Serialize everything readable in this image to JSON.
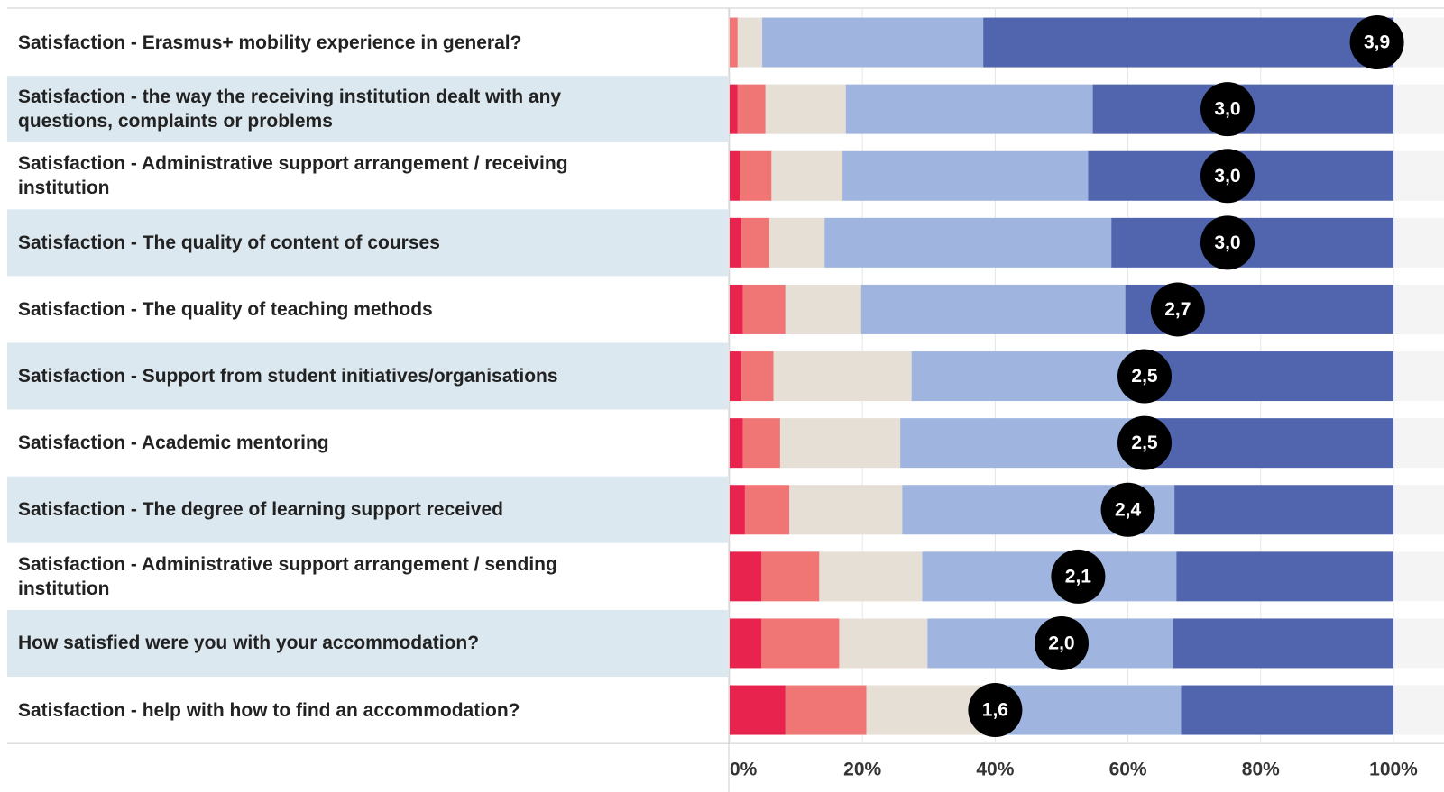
{
  "chart_data": {
    "type": "stacked_bar_horizontal",
    "categories": [
      "Satisfaction -  Erasmus+ mobility experience in general?",
      "Satisfaction - the way the receiving institution dealt with any questions, complaints or problems",
      "Satisfaction - Administrative support arrangement / receiving institution",
      "Satisfaction - The quality of content of courses",
      "Satisfaction - The quality of teaching methods",
      "Satisfaction - Support from student initiatives/organisations",
      "Satisfaction - Academic mentoring",
      "Satisfaction - The degree of learning support received",
      "Satisfaction - Administrative support arrangement / sending institution",
      "How satisfied were you with your accommodation?",
      "Satisfaction - help with how to find an accommodation?"
    ],
    "series": [
      {
        "color": "#e8234e",
        "values": [
          0,
          1.2,
          1.5,
          1.8,
          2.0,
          1.8,
          2.0,
          2.3,
          4.8,
          4.8,
          8.4
        ]
      },
      {
        "color": "#f07575",
        "values": [
          1.2,
          4.2,
          4.8,
          4.2,
          6.4,
          4.8,
          5.6,
          6.7,
          8.7,
          11.7,
          12.2
        ]
      },
      {
        "color": "#e6dfd6",
        "values": [
          3.7,
          12.1,
          10.7,
          8.3,
          11.4,
          20.8,
          18.1,
          17.0,
          15.5,
          13.3,
          17.5
        ]
      },
      {
        "color": "#9fb5e0",
        "values": [
          33.3,
          37.2,
          37.0,
          43.2,
          39.8,
          35.6,
          37.0,
          41.0,
          38.3,
          37.0,
          29.9
        ]
      },
      {
        "color": "#5065ae",
        "values": [
          61.8,
          45.3,
          46.0,
          42.5,
          40.4,
          37.0,
          37.3,
          33.0,
          32.7,
          33.2,
          32.0
        ]
      }
    ],
    "scores": [
      3.9,
      3.0,
      3.0,
      3.0,
      2.7,
      2.5,
      2.5,
      2.4,
      2.1,
      2.0,
      1.6
    ],
    "score_labels": [
      "3,9",
      "3,0",
      "3,0",
      "3,0",
      "2,7",
      "2,5",
      "2,5",
      "2,4",
      "2,1",
      "2,0",
      "1,6"
    ],
    "score_range": [
      0,
      4
    ],
    "xlim": [
      0,
      100
    ],
    "xticks": [
      {
        "value": 0,
        "label": "0%"
      },
      {
        "value": 20,
        "label": "20%"
      },
      {
        "value": 40,
        "label": "40%"
      },
      {
        "value": 60,
        "label": "60%"
      },
      {
        "value": 80,
        "label": "80%"
      },
      {
        "value": 100,
        "label": "100%"
      }
    ],
    "grid": true
  }
}
